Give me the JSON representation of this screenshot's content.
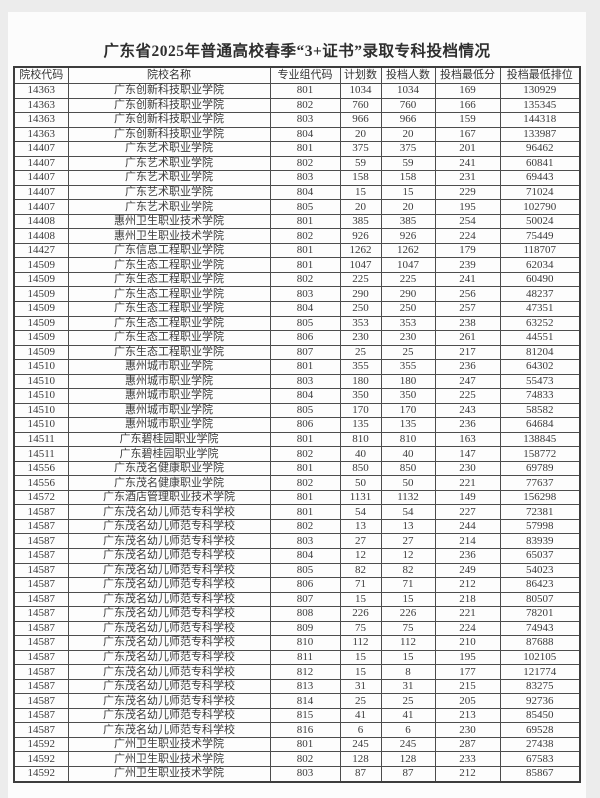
{
  "page": {
    "title": "广东省2025年普通高校春季“3+证书”录取专科投档情况"
  },
  "colors": {
    "canvas_bg": "#ececec",
    "page_bg": "#fcfcfc",
    "border": "#4d4d4d",
    "text": "#3b3b3b"
  },
  "table": {
    "headers": [
      "院校代码",
      "院校名称",
      "专业组代码",
      "计划数",
      "投档人数",
      "投档最低分",
      "投档最低排位"
    ],
    "rows": [
      [
        "14363",
        "广东创新科技职业学院",
        "801",
        "1034",
        "1034",
        "169",
        "130929"
      ],
      [
        "14363",
        "广东创新科技职业学院",
        "802",
        "760",
        "760",
        "166",
        "135345"
      ],
      [
        "14363",
        "广东创新科技职业学院",
        "803",
        "966",
        "966",
        "159",
        "144318"
      ],
      [
        "14363",
        "广东创新科技职业学院",
        "804",
        "20",
        "20",
        "167",
        "133987"
      ],
      [
        "14407",
        "广东艺术职业学院",
        "801",
        "375",
        "375",
        "201",
        "96462"
      ],
      [
        "14407",
        "广东艺术职业学院",
        "802",
        "59",
        "59",
        "241",
        "60841"
      ],
      [
        "14407",
        "广东艺术职业学院",
        "803",
        "158",
        "158",
        "231",
        "69443"
      ],
      [
        "14407",
        "广东艺术职业学院",
        "804",
        "15",
        "15",
        "229",
        "71024"
      ],
      [
        "14407",
        "广东艺术职业学院",
        "805",
        "20",
        "20",
        "195",
        "102790"
      ],
      [
        "14408",
        "惠州卫生职业技术学院",
        "801",
        "385",
        "385",
        "254",
        "50024"
      ],
      [
        "14408",
        "惠州卫生职业技术学院",
        "802",
        "926",
        "926",
        "224",
        "75449"
      ],
      [
        "14427",
        "广东信息工程职业学院",
        "801",
        "1262",
        "1262",
        "179",
        "118707"
      ],
      [
        "14509",
        "广东生态工程职业学院",
        "801",
        "1047",
        "1047",
        "239",
        "62034"
      ],
      [
        "14509",
        "广东生态工程职业学院",
        "802",
        "225",
        "225",
        "241",
        "60490"
      ],
      [
        "14509",
        "广东生态工程职业学院",
        "803",
        "290",
        "290",
        "256",
        "48237"
      ],
      [
        "14509",
        "广东生态工程职业学院",
        "804",
        "250",
        "250",
        "257",
        "47351"
      ],
      [
        "14509",
        "广东生态工程职业学院",
        "805",
        "353",
        "353",
        "238",
        "63252"
      ],
      [
        "14509",
        "广东生态工程职业学院",
        "806",
        "230",
        "230",
        "261",
        "44551"
      ],
      [
        "14509",
        "广东生态工程职业学院",
        "807",
        "25",
        "25",
        "217",
        "81204"
      ],
      [
        "14510",
        "惠州城市职业学院",
        "801",
        "355",
        "355",
        "236",
        "64302"
      ],
      [
        "14510",
        "惠州城市职业学院",
        "803",
        "180",
        "180",
        "247",
        "55473"
      ],
      [
        "14510",
        "惠州城市职业学院",
        "804",
        "350",
        "350",
        "225",
        "74833"
      ],
      [
        "14510",
        "惠州城市职业学院",
        "805",
        "170",
        "170",
        "243",
        "58582"
      ],
      [
        "14510",
        "惠州城市职业学院",
        "806",
        "135",
        "135",
        "236",
        "64684"
      ],
      [
        "14511",
        "广东碧桂园职业学院",
        "801",
        "810",
        "810",
        "163",
        "138845"
      ],
      [
        "14511",
        "广东碧桂园职业学院",
        "802",
        "40",
        "40",
        "147",
        "158772"
      ],
      [
        "14556",
        "广东茂名健康职业学院",
        "801",
        "850",
        "850",
        "230",
        "69789"
      ],
      [
        "14556",
        "广东茂名健康职业学院",
        "802",
        "50",
        "50",
        "221",
        "77637"
      ],
      [
        "14572",
        "广东酒店管理职业技术学院",
        "801",
        "1131",
        "1132",
        "149",
        "156298"
      ],
      [
        "14587",
        "广东茂名幼儿师范专科学校",
        "801",
        "54",
        "54",
        "227",
        "72381"
      ],
      [
        "14587",
        "广东茂名幼儿师范专科学校",
        "802",
        "13",
        "13",
        "244",
        "57998"
      ],
      [
        "14587",
        "广东茂名幼儿师范专科学校",
        "803",
        "27",
        "27",
        "214",
        "83939"
      ],
      [
        "14587",
        "广东茂名幼儿师范专科学校",
        "804",
        "12",
        "12",
        "236",
        "65037"
      ],
      [
        "14587",
        "广东茂名幼儿师范专科学校",
        "805",
        "82",
        "82",
        "249",
        "54023"
      ],
      [
        "14587",
        "广东茂名幼儿师范专科学校",
        "806",
        "71",
        "71",
        "212",
        "86423"
      ],
      [
        "14587",
        "广东茂名幼儿师范专科学校",
        "807",
        "15",
        "15",
        "218",
        "80507"
      ],
      [
        "14587",
        "广东茂名幼儿师范专科学校",
        "808",
        "226",
        "226",
        "221",
        "78201"
      ],
      [
        "14587",
        "广东茂名幼儿师范专科学校",
        "809",
        "75",
        "75",
        "224",
        "74943"
      ],
      [
        "14587",
        "广东茂名幼儿师范专科学校",
        "810",
        "112",
        "112",
        "210",
        "87688"
      ],
      [
        "14587",
        "广东茂名幼儿师范专科学校",
        "811",
        "15",
        "15",
        "195",
        "102105"
      ],
      [
        "14587",
        "广东茂名幼儿师范专科学校",
        "812",
        "15",
        "8",
        "177",
        "121774"
      ],
      [
        "14587",
        "广东茂名幼儿师范专科学校",
        "813",
        "31",
        "31",
        "215",
        "83275"
      ],
      [
        "14587",
        "广东茂名幼儿师范专科学校",
        "814",
        "25",
        "25",
        "205",
        "92736"
      ],
      [
        "14587",
        "广东茂名幼儿师范专科学校",
        "815",
        "41",
        "41",
        "213",
        "85450"
      ],
      [
        "14587",
        "广东茂名幼儿师范专科学校",
        "816",
        "6",
        "6",
        "230",
        "69528"
      ],
      [
        "14592",
        "广州卫生职业技术学院",
        "801",
        "245",
        "245",
        "287",
        "27438"
      ],
      [
        "14592",
        "广州卫生职业技术学院",
        "802",
        "128",
        "128",
        "233",
        "67583"
      ],
      [
        "14592",
        "广州卫生职业技术学院",
        "803",
        "87",
        "87",
        "212",
        "85867"
      ]
    ]
  }
}
